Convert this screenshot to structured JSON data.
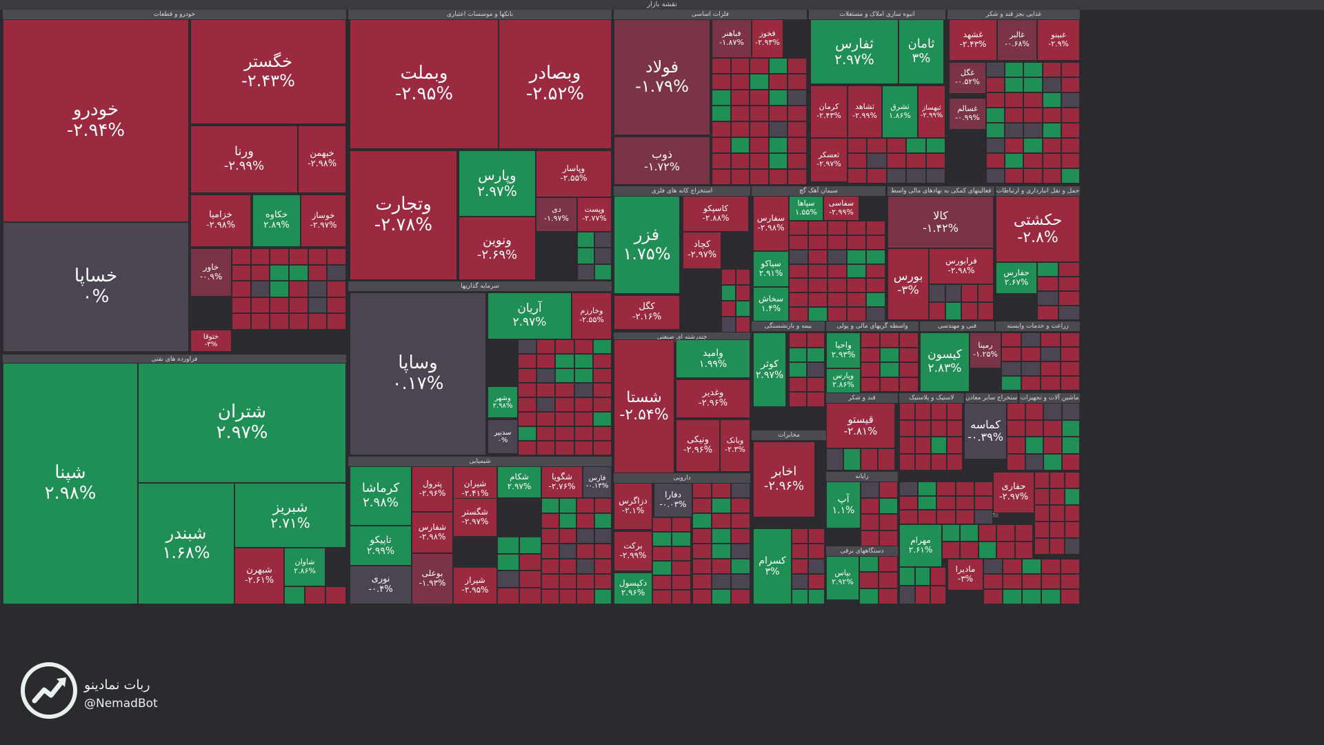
{
  "title": "نقشه بازار",
  "colors": {
    "down": "#9b2a40",
    "down2": "#8a2a3f",
    "up": "#1f8f55",
    "up_dim": "#2a6e4e",
    "flat": "#4a4550",
    "bg": "#2b2b2f"
  },
  "watermark": {
    "name": "ربات نمادینو",
    "handle": "@NemadBot",
    "icon": "trend-up-icon"
  },
  "chart_data": {
    "type": "treemap",
    "unit": "%",
    "sectors": [
      {
        "name": "خودرو و قطعات"
      },
      {
        "name": "بانکها و موسسات اعتباری"
      },
      {
        "name": "فلزات اساسی"
      },
      {
        "name": "انبوه سازی املاک و مستغلات"
      },
      {
        "name": "غذایی بجز قند و شکر"
      },
      {
        "name": "فراورده های نفتی"
      },
      {
        "name": "سرمایه گذاریها"
      },
      {
        "name": "شیمیایی"
      },
      {
        "name": "چندرشته ای صنعتی"
      },
      {
        "name": "استخراج کانه های فلزی"
      },
      {
        "name": "سیمان آهک گچ"
      },
      {
        "name": "فعالیتهای کمکی به نهادهای مالی واسط"
      },
      {
        "name": "حمل و نقل انبارداری و ارتباطات"
      },
      {
        "name": "بیمه و بازنشستگی"
      },
      {
        "name": "واسطه گریهای مالی و پولی"
      },
      {
        "name": "فنی و مهندسی"
      },
      {
        "name": "زراعت و خدمات وابسته"
      },
      {
        "name": "مخابرات"
      },
      {
        "name": "قند و شکر"
      },
      {
        "name": "لاستیک و پلاستیک"
      },
      {
        "name": "استخراج سایر معادن"
      },
      {
        "name": "ماشین آلات و تجهیزات"
      },
      {
        "name": "دارویی"
      },
      {
        "name": "کاشی و سرامیک"
      },
      {
        "name": "رایانه"
      },
      {
        "name": "دستگاههای برقی"
      }
    ],
    "tiles": [
      {
        "symbol": "خودرو",
        "change": "-۲.۹۴%",
        "value": -2.94
      },
      {
        "symbol": "خگستر",
        "change": "-۲.۴۳%",
        "value": -2.43
      },
      {
        "symbol": "ورنا",
        "change": "-۲.۹۹%",
        "value": -2.99
      },
      {
        "symbol": "خبهمن",
        "change": "-۲.۹۸%",
        "value": -2.98
      },
      {
        "symbol": "خساپا",
        "change": "۰%",
        "value": 0
      },
      {
        "symbol": "خزامیا",
        "change": "-۲.۹۸%",
        "value": -2.98
      },
      {
        "symbol": "خکاوه",
        "change": "۲.۸۹%",
        "value": 2.89
      },
      {
        "symbol": "خوساز",
        "change": "-۲.۹۷%",
        "value": -2.97
      },
      {
        "symbol": "خاور",
        "change": "-۰.۹%",
        "value": -0.9
      },
      {
        "symbol": "ختوقا",
        "change": "-۳%",
        "value": -3
      },
      {
        "symbol": "شپنا",
        "change": "۲.۹۸%",
        "value": 2.98
      },
      {
        "symbol": "شتران",
        "change": "۲.۹۷%",
        "value": 2.97
      },
      {
        "symbol": "شبندر",
        "change": "۱.۶۸%",
        "value": 1.68
      },
      {
        "symbol": "شبریز",
        "change": "۲.۷۱%",
        "value": 2.71
      },
      {
        "symbol": "شبهرن",
        "change": "-۲.۶۱%",
        "value": -2.61
      },
      {
        "symbol": "شاوان",
        "change": "۲.۸۶%",
        "value": 2.86
      },
      {
        "symbol": "وبملت",
        "change": "-۲.۹۵%",
        "value": -2.95
      },
      {
        "symbol": "وبصادر",
        "change": "-۲.۵۲%",
        "value": -2.52
      },
      {
        "symbol": "وتجارت",
        "change": "-۲.۷۸%",
        "value": -2.78
      },
      {
        "symbol": "وپارس",
        "change": "۲.۹۷%",
        "value": 2.97
      },
      {
        "symbol": "وپاسار",
        "change": "-۲.۵۵%",
        "value": -2.55
      },
      {
        "symbol": "ونوین",
        "change": "-۲.۶۹%",
        "value": -2.69
      },
      {
        "symbol": "دی",
        "change": "-۱.۹۷%",
        "value": -1.97
      },
      {
        "symbol": "وپست",
        "change": "-۲.۷۷%",
        "value": -2.77
      },
      {
        "symbol": "وساپا",
        "change": "۰.۱۷%",
        "value": 0.17
      },
      {
        "symbol": "آریان",
        "change": "۲.۹۷%",
        "value": 2.97
      },
      {
        "symbol": "وخارزم",
        "change": "-۲.۵۵%",
        "value": -2.55
      },
      {
        "symbol": "وشهر",
        "change": "۲.۹۸%",
        "value": 2.98
      },
      {
        "symbol": "سدبیر",
        "change": "۰%",
        "value": 0
      },
      {
        "symbol": "کرماشا",
        "change": "۲.۹۸%",
        "value": 2.98
      },
      {
        "symbol": "پترول",
        "change": "-۲.۹۶%",
        "value": -2.96
      },
      {
        "symbol": "شیران",
        "change": "-۲.۴۱%",
        "value": -2.41
      },
      {
        "symbol": "شکام",
        "change": "۲.۹۷%",
        "value": 2.97
      },
      {
        "symbol": "شگویا",
        "change": "-۲.۷۶%",
        "value": -2.76
      },
      {
        "symbol": "فارس",
        "change": "-۰.۱۳%",
        "value": -0.13
      },
      {
        "symbol": "تاپیکو",
        "change": "۲.۹۹%",
        "value": 2.99
      },
      {
        "symbol": "شفارس",
        "change": "-۲.۹۸%",
        "value": -2.98
      },
      {
        "symbol": "شگستر",
        "change": "-۲.۹۷%",
        "value": -2.97
      },
      {
        "symbol": "نوری",
        "change": "-۰.۴%",
        "value": -0.4
      },
      {
        "symbol": "بوعلی",
        "change": "-۱.۹۳%",
        "value": -1.93
      },
      {
        "symbol": "شیراز",
        "change": "-۲.۹۵%",
        "value": -2.95
      },
      {
        "symbol": "فولاد",
        "change": "-۱.۷۹%",
        "value": -1.79
      },
      {
        "symbol": "ذوب",
        "change": "-۱.۷۲%",
        "value": -1.72
      },
      {
        "symbol": "فباهنر",
        "change": "-۱.۸۷%",
        "value": -1.87
      },
      {
        "symbol": "فخوز",
        "change": "-۲.۹۳%",
        "value": -2.93
      },
      {
        "symbol": "ثفارس",
        "change": "۲.۹۷%",
        "value": 2.97
      },
      {
        "symbol": "ثامان",
        "change": "۳%",
        "value": 3
      },
      {
        "symbol": "کرمان",
        "change": "-۲.۴۳%",
        "value": -2.43
      },
      {
        "symbol": "ثشاهد",
        "change": "-۲.۹۹%",
        "value": -2.99
      },
      {
        "symbol": "ثشرق",
        "change": "۱.۸۶%",
        "value": 1.86
      },
      {
        "symbol": "ثبهساز",
        "change": "-۲.۹۹%",
        "value": -2.99
      },
      {
        "symbol": "ثعسکر",
        "change": "-۲.۹۷%",
        "value": -2.97
      },
      {
        "symbol": "غشهد",
        "change": "-۲.۴۳%",
        "value": -2.43
      },
      {
        "symbol": "غالبر",
        "change": "-۰.۶۸%",
        "value": -0.68
      },
      {
        "symbol": "غبینو",
        "change": "-۲.۹%",
        "value": -2.9
      },
      {
        "symbol": "غگل",
        "change": "-۰.۵۲%",
        "value": -0.52
      },
      {
        "symbol": "غسالم",
        "change": "-۰.۹۹%",
        "value": -0.99
      },
      {
        "symbol": "فزر",
        "change": "۱.۷۵%",
        "value": 1.75
      },
      {
        "symbol": "کگل",
        "change": "-۲.۱۶%",
        "value": -2.16
      },
      {
        "symbol": "کچاد",
        "change": "-۲.۹۷%",
        "value": -2.97
      },
      {
        "symbol": "کاسپکو",
        "change": "-۲.۸۸%",
        "value": -2.88
      },
      {
        "symbol": "سفارس",
        "change": "-۲.۹۸%",
        "value": -2.98
      },
      {
        "symbol": "سپاها",
        "change": "۱.۵۵%",
        "value": 1.55
      },
      {
        "symbol": "سفاسی",
        "change": "-۲.۹۹%",
        "value": -2.99
      },
      {
        "symbol": "کالا",
        "change": "-۱.۴۲%",
        "value": -1.42
      },
      {
        "symbol": "بورس",
        "change": "-۳%",
        "value": -3
      },
      {
        "symbol": "فرابورس",
        "change": "-۲.۹۸%",
        "value": -2.98
      },
      {
        "symbol": "حکشتی",
        "change": "-۲.۸%",
        "value": -2.8
      },
      {
        "symbol": "حفارس",
        "change": "۲.۶۷%",
        "value": 2.67
      },
      {
        "symbol": "سخاش",
        "change": "۱.۴%",
        "value": 1.4
      },
      {
        "symbol": "سیاکو",
        "change": "۲.۹۱%",
        "value": 2.91
      },
      {
        "symbol": "وامید",
        "change": "۱.۹۹%",
        "value": 1.99
      },
      {
        "symbol": "شستا",
        "change": "-۲.۵۴%",
        "value": -2.54
      },
      {
        "symbol": "وغدیر",
        "change": "-۲.۹۶%",
        "value": -2.96
      },
      {
        "symbol": "ونیکی",
        "change": "-۲.۹۶%",
        "value": -2.96
      },
      {
        "symbol": "وبانک",
        "change": "-۲.۳%",
        "value": -2.3
      },
      {
        "symbol": "کوثر",
        "change": "۲.۹۷%",
        "value": 2.97
      },
      {
        "symbol": "واحیا",
        "change": "۲.۹۳%",
        "value": 2.93
      },
      {
        "symbol": "وپارس",
        "change": "۲.۸۶%",
        "value": 2.86
      },
      {
        "symbol": "کیسون",
        "change": "۲.۸۳%",
        "value": 2.83
      },
      {
        "symbol": "رمپنا",
        "change": "-۱.۲۵%",
        "value": -1.25
      },
      {
        "symbol": "قیستو",
        "change": "-۲.۸۱%",
        "value": -2.81
      },
      {
        "symbol": "کماسه",
        "change": "-۰.۳۹%",
        "value": -0.39
      },
      {
        "symbol": "اخابر",
        "change": "-۲.۹۶%",
        "value": -2.96
      },
      {
        "symbol": "کسرام",
        "change": "۳%",
        "value": 3
      },
      {
        "symbol": "آپ",
        "change": "۱.۱%",
        "value": 1.1
      },
      {
        "symbol": "حفاری",
        "change": "-۲.۹۷%",
        "value": -2.97
      },
      {
        "symbol": "مهرام",
        "change": "۲.۶۱%",
        "value": 2.61
      },
      {
        "symbol": "مادیرا",
        "change": "-۳%",
        "value": -3
      },
      {
        "symbol": "دزاگرس",
        "change": "-۲.۱%",
        "value": -2.1
      },
      {
        "symbol": "دفارا",
        "change": "-۰.۰۳%",
        "value": -0.03
      },
      {
        "symbol": "برکت",
        "change": "-۲.۹۹%",
        "value": -2.99
      },
      {
        "symbol": "دکپسول",
        "change": "۲.۹۶%",
        "value": 2.96
      },
      {
        "symbol": "بپاس",
        "change": "۲.۹۲%",
        "value": 2.92
      }
    ]
  }
}
